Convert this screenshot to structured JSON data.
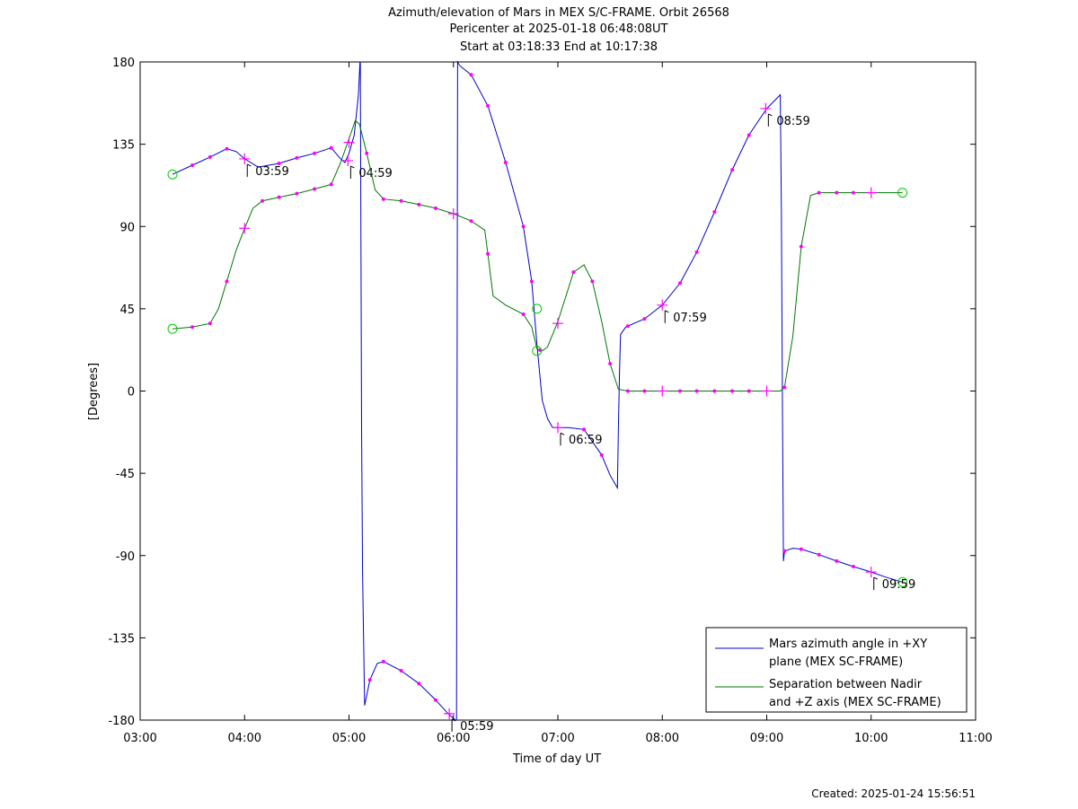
{
  "chart_data": {
    "type": "line",
    "title": [
      "Azimuth/elevation of Mars in MEX S/C-FRAME.  Orbit 26568",
      "Pericenter at 2025-01-18 06:48:08UT",
      "Start at 03:18:33 End at 10:17:38"
    ],
    "xlabel": "Time of day UT",
    "ylabel": "[Degrees]",
    "x_units": "hours",
    "xlim": [
      3,
      11
    ],
    "ylim": [
      -180,
      180
    ],
    "xticks": [
      "03:00",
      "04:00",
      "05:00",
      "06:00",
      "07:00",
      "08:00",
      "09:00",
      "10:00",
      "11:00"
    ],
    "yticks": [
      180,
      135,
      90,
      45,
      0,
      -45,
      -90,
      -135,
      -180
    ],
    "legend_position": "bottom-right",
    "grid": false,
    "series": [
      {
        "name": "Mars azimuth angle in +XY\nplane (MEX SC-FRAME)",
        "color": "#0000cc",
        "points": [
          [
            3.31,
            118.5
          ],
          [
            3.5,
            123.5
          ],
          [
            3.67,
            128
          ],
          [
            3.83,
            132.5
          ],
          [
            3.92,
            131
          ],
          [
            4.0,
            127
          ],
          [
            4.13,
            122.5
          ],
          [
            4.33,
            124.5
          ],
          [
            4.5,
            127.5
          ],
          [
            4.67,
            130
          ],
          [
            4.83,
            133
          ],
          [
            4.92,
            127
          ],
          [
            4.96,
            125
          ],
          [
            5.0,
            130
          ],
          [
            5.05,
            140
          ],
          [
            5.09,
            162
          ],
          [
            5.105,
            180
          ],
          [
            5.108,
            180
          ],
          [
            5.12,
            -20
          ],
          [
            5.13,
            -100
          ],
          [
            5.15,
            -172
          ],
          [
            5.2,
            -158
          ],
          [
            5.27,
            -149
          ],
          [
            5.33,
            -148
          ],
          [
            5.5,
            -153
          ],
          [
            5.67,
            -160
          ],
          [
            5.83,
            -169
          ],
          [
            5.95,
            -176.5
          ],
          [
            6.02,
            -180
          ],
          [
            6.03,
            -180
          ],
          [
            6.035,
            0
          ],
          [
            6.04,
            180
          ],
          [
            6.06,
            178
          ],
          [
            6.17,
            173
          ],
          [
            6.33,
            156
          ],
          [
            6.5,
            125
          ],
          [
            6.67,
            90
          ],
          [
            6.75,
            60
          ],
          [
            6.8,
            25
          ],
          [
            6.85,
            -5
          ],
          [
            6.9,
            -15
          ],
          [
            6.95,
            -20
          ],
          [
            7.0,
            -20
          ],
          [
            7.1,
            -20
          ],
          [
            7.25,
            -21
          ],
          [
            7.42,
            -35
          ],
          [
            7.5,
            -46
          ],
          [
            7.57,
            -53
          ],
          [
            7.58,
            -20
          ],
          [
            7.59,
            10
          ],
          [
            7.6,
            31
          ],
          [
            7.65,
            35
          ],
          [
            7.83,
            39.5
          ],
          [
            8.0,
            47
          ],
          [
            8.17,
            59
          ],
          [
            8.33,
            76
          ],
          [
            8.5,
            98
          ],
          [
            8.67,
            121
          ],
          [
            8.83,
            140
          ],
          [
            9.0,
            154.5
          ],
          [
            9.13,
            162
          ],
          [
            9.14,
            100
          ],
          [
            9.15,
            0
          ],
          [
            9.16,
            -93
          ],
          [
            9.17,
            -87.5
          ],
          [
            9.25,
            -86
          ],
          [
            9.33,
            -86.5
          ],
          [
            9.5,
            -89.5
          ],
          [
            9.67,
            -93
          ],
          [
            9.83,
            -96
          ],
          [
            10.0,
            -99
          ],
          [
            10.15,
            -102
          ],
          [
            10.3,
            -104.5
          ]
        ],
        "markers": [
          3.5,
          3.67,
          3.83,
          4.33,
          4.5,
          4.67,
          4.83,
          5.2,
          5.33,
          5.5,
          5.67,
          5.83,
          6.17,
          6.33,
          6.5,
          6.67,
          6.75,
          7.25,
          7.42,
          7.67,
          7.83,
          8.17,
          8.33,
          8.5,
          8.67,
          8.83,
          9.17,
          9.33,
          9.5,
          9.67,
          9.83
        ],
        "hour_markers": [
          [
            4.0,
            127
          ],
          [
            4.99,
            126
          ],
          [
            5.96,
            -176.5
          ],
          [
            7.0,
            -20
          ],
          [
            8.0,
            47
          ],
          [
            8.99,
            154.5
          ],
          [
            10.0,
            -99
          ]
        ],
        "time_labels": [
          "03:59",
          "04:59",
          "05:59",
          "06:59",
          "07:59",
          "08:59",
          "09:59"
        ],
        "circles": [
          [
            3.31,
            118.5
          ],
          [
            6.8,
            45
          ],
          [
            10.3,
            -104.5
          ]
        ]
      },
      {
        "name": "Separation between Nadir\nand +Z axis (MEX SC-FRAME)",
        "color": "#007700",
        "points": [
          [
            3.31,
            34
          ],
          [
            3.5,
            35
          ],
          [
            3.67,
            37
          ],
          [
            3.75,
            45
          ],
          [
            3.83,
            60
          ],
          [
            3.92,
            77
          ],
          [
            4.0,
            89
          ],
          [
            4.08,
            100
          ],
          [
            4.17,
            104
          ],
          [
            4.33,
            106
          ],
          [
            4.5,
            108
          ],
          [
            4.67,
            110.5
          ],
          [
            4.83,
            113
          ],
          [
            4.92,
            125
          ],
          [
            5.0,
            138
          ],
          [
            5.06,
            148
          ],
          [
            5.1,
            146
          ],
          [
            5.17,
            130
          ],
          [
            5.25,
            110
          ],
          [
            5.33,
            105
          ],
          [
            5.5,
            104
          ],
          [
            5.67,
            102
          ],
          [
            5.83,
            100
          ],
          [
            6.0,
            97
          ],
          [
            6.17,
            93
          ],
          [
            6.3,
            88
          ],
          [
            6.33,
            75
          ],
          [
            6.38,
            52
          ],
          [
            6.5,
            47
          ],
          [
            6.67,
            42
          ],
          [
            6.75,
            35
          ],
          [
            6.8,
            23
          ],
          [
            6.85,
            22
          ],
          [
            6.9,
            24
          ],
          [
            7.0,
            38
          ],
          [
            7.15,
            65
          ],
          [
            7.25,
            69
          ],
          [
            7.33,
            60
          ],
          [
            7.42,
            38
          ],
          [
            7.5,
            15
          ],
          [
            7.58,
            1
          ],
          [
            7.67,
            0
          ],
          [
            8.0,
            0
          ],
          [
            8.5,
            0
          ],
          [
            9.0,
            0
          ],
          [
            9.13,
            0
          ],
          [
            9.17,
            2
          ],
          [
            9.25,
            30
          ],
          [
            9.33,
            79
          ],
          [
            9.42,
            107
          ],
          [
            9.5,
            108.5
          ],
          [
            9.67,
            108.5
          ],
          [
            9.83,
            108.5
          ],
          [
            10.0,
            108.5
          ],
          [
            10.3,
            108.5
          ]
        ],
        "markers": [
          3.5,
          3.67,
          3.83,
          4.17,
          4.33,
          4.5,
          4.67,
          4.83,
          5.17,
          5.33,
          5.5,
          5.67,
          5.83,
          6.17,
          6.33,
          6.67,
          6.83,
          7.15,
          7.33,
          7.5,
          7.67,
          7.83,
          8.17,
          8.33,
          8.5,
          8.67,
          8.83,
          9.17,
          9.33,
          9.5,
          9.67,
          9.83
        ],
        "hour_markers": [
          [
            4.0,
            89
          ],
          [
            5.0,
            136
          ],
          [
            6.0,
            97
          ],
          [
            7.0,
            37
          ],
          [
            8.0,
            0
          ],
          [
            9.0,
            0
          ],
          [
            10.0,
            108.5
          ]
        ],
        "circles": [
          [
            3.31,
            34
          ],
          [
            6.8,
            22
          ],
          [
            10.3,
            108.5
          ]
        ]
      }
    ]
  },
  "created": "Created: 2025-01-24 15:56:51"
}
